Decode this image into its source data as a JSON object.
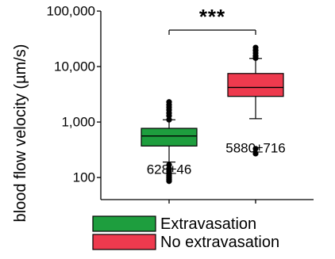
{
  "chart_data": {
    "type": "box",
    "ylabel": "blood flow velocity (µm/s)",
    "yscale": "log",
    "ylim": [
      40,
      100000
    ],
    "y_ticks": [
      {
        "value": 100,
        "label": "100"
      },
      {
        "value": 1000,
        "label": "1,000"
      },
      {
        "value": 10000,
        "label": "10,000"
      },
      {
        "value": 100000,
        "label": "100,000"
      }
    ],
    "series": [
      {
        "name": "Extravasation",
        "color": "#1e9e3e",
        "median": 560,
        "q1": 370,
        "q3": 770,
        "whisker_low": 190,
        "whisker_high": 1100,
        "outliers": [
          2300,
          2050,
          1850,
          1650,
          1450,
          1300,
          1100,
          170,
          145,
          130,
          118,
          108,
          100,
          92,
          86
        ],
        "annotation": "628±46"
      },
      {
        "name": "No extravasation",
        "color": "#ee3a4e",
        "median": 4200,
        "q1": 2900,
        "q3": 7500,
        "whisker_low": 1150,
        "whisker_high": 14000,
        "outliers": [
          22000,
          19500,
          17500,
          15500,
          14200,
          330,
          270
        ],
        "annotation": "5880±716"
      }
    ],
    "significance": "***",
    "legend_position": "bottom"
  }
}
